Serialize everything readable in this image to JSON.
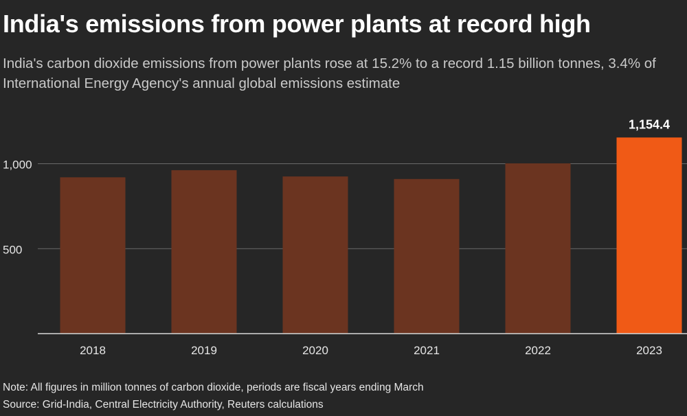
{
  "header": {
    "title": "India's emissions from power plants at record high",
    "subtitle": "India's carbon dioxide emissions from power plants rose at 15.2% to a record 1.15 billion tonnes, 3.4% of International Energy Agency's annual global emissions estimate"
  },
  "footer": {
    "note": "Note: All figures in million tonnes of carbon dioxide, periods are fiscal years ending March",
    "source": "Source: Grid-India, Central Electricity Authority, Reuters calculations"
  },
  "colors": {
    "background": "#262626",
    "bar": "#6b3420",
    "highlight": "#f05a16",
    "grid": "#6a6a6a",
    "axis": "#d8d8d8",
    "text": "#e6e6e6"
  },
  "chart_data": {
    "type": "bar",
    "categories": [
      "2018",
      "2019",
      "2020",
      "2021",
      "2022",
      "2023"
    ],
    "values": [
      920,
      962,
      925,
      910,
      1002,
      1154.4
    ],
    "highlight_index": 5,
    "data_labels": [
      {
        "index": 5,
        "text": "1,154.4"
      }
    ],
    "yticks": [
      500,
      1000
    ],
    "ytick_labels": [
      "500",
      "1,000"
    ],
    "ylim": [
      0,
      1250
    ],
    "grid": true,
    "title": "",
    "xlabel": "",
    "ylabel": ""
  }
}
